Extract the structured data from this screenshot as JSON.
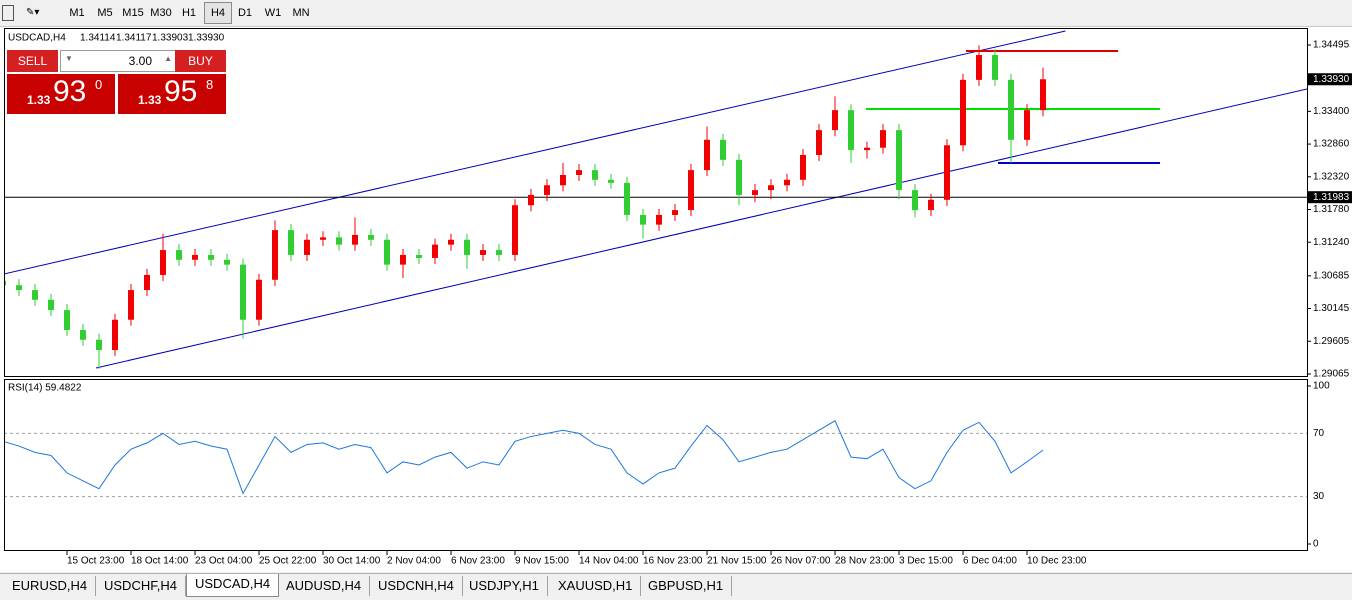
{
  "toolbar": {
    "timeframes": [
      "M1",
      "M5",
      "M15",
      "M30",
      "H1",
      "H4",
      "D1",
      "W1",
      "MN"
    ],
    "active": "H4"
  },
  "trade_panel": {
    "sell": "SELL",
    "lot": "3.00",
    "buy": "BUY",
    "bid": {
      "prefix": "1.33",
      "big": "93",
      "small": "0"
    },
    "ask": {
      "prefix": "1.33",
      "big": "95",
      "small": "8"
    }
  },
  "chart_data": [
    {
      "type": "candlestick",
      "title": "USDCAD,H4",
      "quote": [
        "1.34114",
        "1.34117",
        "1.33903",
        "1.33930"
      ],
      "categories": [
        null,
        null,
        null,
        null,
        "15 Oct 23:00",
        null,
        null,
        null,
        "18 Oct 14:00",
        null,
        null,
        null,
        "23 Oct 04:00",
        null,
        null,
        null,
        "25 Oct 22:00",
        null,
        null,
        null,
        "30 Oct 14:00",
        null,
        null,
        null,
        "2 Nov 04:00",
        null,
        null,
        null,
        "6 Nov 23:00",
        null,
        null,
        null,
        "9 Nov 15:00",
        null,
        null,
        null,
        "14 Nov 04:00",
        null,
        null,
        null,
        "16 Nov 23:00",
        null,
        null,
        null,
        "21 Nov 15:00",
        null,
        null,
        null,
        "26 Nov 07:00",
        null,
        null,
        null,
        "28 Nov 23:00",
        null,
        null,
        null,
        "3 Dec 15:00",
        null,
        null,
        null,
        "6 Dec 04:00",
        null,
        null,
        null,
        "10 Dec 23:00",
        null
      ],
      "open": [
        1.306,
        1.3053,
        1.3045,
        1.3029,
        1.3012,
        1.2979,
        1.2963,
        1.2946,
        1.2996,
        1.3045,
        1.307,
        1.3111,
        1.3095,
        1.3103,
        1.3095,
        1.3087,
        1.2996,
        1.3062,
        1.3144,
        1.3103,
        1.3128,
        1.3132,
        1.312,
        1.3136,
        1.3128,
        1.3087,
        1.3103,
        1.3098,
        1.312,
        1.3128,
        1.3103,
        1.3111,
        1.3103,
        1.3185,
        1.3202,
        1.3218,
        1.3235,
        1.3243,
        1.3227,
        1.3222,
        1.3169,
        1.3153,
        1.3169,
        1.3177,
        1.3243,
        1.3293,
        1.326,
        1.3202,
        1.321,
        1.3218,
        1.3227,
        1.3268,
        1.3309,
        1.3342,
        1.3276,
        1.328,
        1.3309,
        1.321,
        1.3177,
        1.3194,
        1.3284,
        1.3392,
        1.3433,
        1.3392,
        1.3293,
        1.3342
      ],
      "high": [
        1.307,
        1.3063,
        1.3055,
        1.3039,
        1.3022,
        1.2989,
        1.2973,
        1.3006,
        1.3055,
        1.308,
        1.3138,
        1.3121,
        1.3113,
        1.3113,
        1.3105,
        1.3097,
        1.3072,
        1.316,
        1.3154,
        1.3138,
        1.3142,
        1.3142,
        1.3165,
        1.3146,
        1.3138,
        1.3113,
        1.3113,
        1.313,
        1.3138,
        1.3138,
        1.3121,
        1.3121,
        1.3195,
        1.3212,
        1.3228,
        1.3255,
        1.3253,
        1.3253,
        1.3237,
        1.3232,
        1.3179,
        1.3179,
        1.3187,
        1.3253,
        1.3315,
        1.3303,
        1.327,
        1.322,
        1.3228,
        1.3237,
        1.3278,
        1.3319,
        1.3365,
        1.3352,
        1.329,
        1.3319,
        1.3319,
        1.322,
        1.3204,
        1.3294,
        1.3402,
        1.3449,
        1.3443,
        1.3402,
        1.3352,
        1.3412
      ],
      "low": [
        1.3043,
        1.3035,
        1.3019,
        1.3002,
        1.2969,
        1.2953,
        1.2915,
        1.2936,
        1.2986,
        1.3035,
        1.306,
        1.3085,
        1.3085,
        1.3085,
        1.3077,
        1.2965,
        1.2986,
        1.3052,
        1.3093,
        1.3093,
        1.3118,
        1.311,
        1.311,
        1.3118,
        1.3077,
        1.3065,
        1.3088,
        1.3088,
        1.311,
        1.308,
        1.3093,
        1.3093,
        1.3093,
        1.3175,
        1.3192,
        1.3208,
        1.3225,
        1.3217,
        1.3212,
        1.3159,
        1.313,
        1.3143,
        1.3159,
        1.3167,
        1.3233,
        1.325,
        1.3185,
        1.319,
        1.3195,
        1.3208,
        1.3217,
        1.3258,
        1.3299,
        1.3255,
        1.3262,
        1.327,
        1.3195,
        1.3165,
        1.3167,
        1.3184,
        1.3274,
        1.3382,
        1.3382,
        1.3255,
        1.3283,
        1.3332
      ],
      "close": [
        1.3053,
        1.3045,
        1.3029,
        1.3012,
        1.2979,
        1.2963,
        1.2946,
        1.2996,
        1.3045,
        1.307,
        1.3111,
        1.3095,
        1.3103,
        1.3095,
        1.3087,
        1.2996,
        1.3062,
        1.3144,
        1.3103,
        1.3128,
        1.3132,
        1.312,
        1.3136,
        1.3128,
        1.3087,
        1.3103,
        1.3098,
        1.312,
        1.3128,
        1.3103,
        1.3111,
        1.3103,
        1.3185,
        1.3202,
        1.3218,
        1.3235,
        1.3243,
        1.3227,
        1.3222,
        1.3169,
        1.3153,
        1.3169,
        1.3177,
        1.3243,
        1.3293,
        1.326,
        1.3202,
        1.321,
        1.3218,
        1.3227,
        1.3268,
        1.3309,
        1.3342,
        1.3276,
        1.328,
        1.3309,
        1.321,
        1.3177,
        1.3194,
        1.3284,
        1.3392,
        1.3433,
        1.3392,
        1.3293,
        1.3342,
        1.3393
      ],
      "up_color": "#f00000",
      "down_color": "#32cd32",
      "ylim": [
        1.29015,
        1.34776
      ],
      "yticks": [
        1.34495,
        {
          "value": 1.334,
          "label": "1.33400"
        },
        {
          "value": 1.3286,
          "label": "1.32860"
        },
        {
          "value": 1.3232,
          "label": "1.32320"
        },
        {
          "value": 1.3178,
          "label": "1.31780"
        },
        {
          "value": 1.3124,
          "label": "1.31240"
        },
        1.30685,
        1.30145,
        1.29605,
        1.29065
      ],
      "current_price": {
        "value": 1.3393,
        "label": "1.33930"
      },
      "hlines": [
        {
          "value": 1.31983,
          "label": "1.31983",
          "color": "#000000"
        }
      ],
      "levels": [
        {
          "value": 1.34396,
          "color": "#e00000"
        },
        {
          "value": 1.33439,
          "color": "#00e000"
        },
        {
          "value": 1.32547,
          "color": "#0000c8"
        }
      ],
      "channel": [
        {
          "x": [
            0.06,
            66.4
          ],
          "y": [
            1.30716,
            1.34726
          ]
        },
        {
          "x": [
            5.81,
            81.5
          ],
          "y": [
            1.29164,
            1.33769
          ]
        }
      ],
      "channel_color": "#0000b4"
    },
    {
      "type": "line",
      "title": "RSI(14) 59.4822",
      "values": [
        65,
        62,
        58,
        56,
        45,
        40,
        35,
        50,
        60,
        64,
        70,
        63,
        65,
        62,
        60,
        32,
        50,
        68,
        58,
        63,
        64,
        60,
        63,
        61,
        45,
        52,
        50,
        55,
        58,
        48,
        52,
        50,
        65,
        68,
        70,
        72,
        70,
        63,
        60,
        45,
        38,
        45,
        48,
        62,
        75,
        66,
        52,
        55,
        58,
        60,
        66,
        72,
        78,
        55,
        54,
        60,
        42,
        35,
        40,
        58,
        72,
        77,
        65,
        45,
        52,
        59.4822
      ],
      "color": "#1e78dc",
      "ylim": [
        0,
        100
      ],
      "yticks": [
        100,
        70,
        30,
        0
      ]
    }
  ],
  "tabs": {
    "items": [
      "EURUSD,H4",
      "USDCHF,H4",
      "USDCAD,H4",
      "AUDUSD,H4",
      "USDCNH,H4",
      "USDJPY,H1",
      "XAUUSD,H1",
      "GBPUSD,H1"
    ],
    "active": "USDCAD,H4"
  }
}
